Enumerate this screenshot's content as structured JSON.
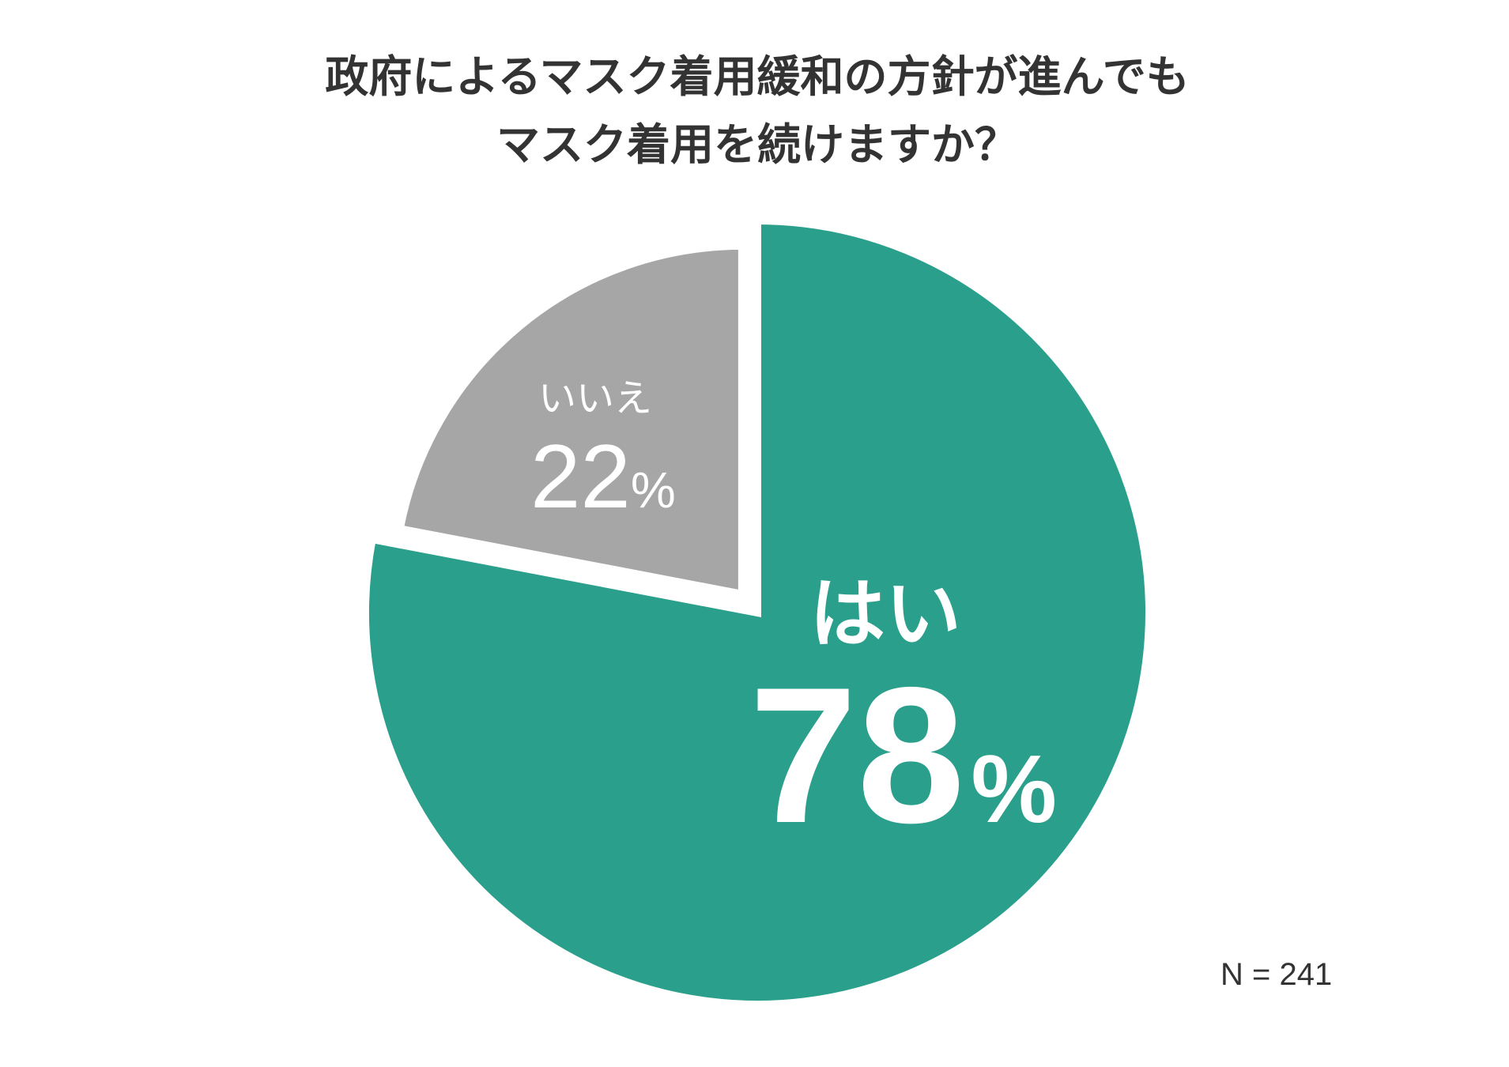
{
  "chart_data": {
    "type": "pie",
    "title": [
      "政府によるマスク着用緩和の方針が進んでも",
      "マスク着用を続けますか？"
    ],
    "unit": "%",
    "start": "top",
    "direction": "clockwise",
    "slices": [
      {
        "label": "はい",
        "value": 78,
        "color": "#2aa08c"
      },
      {
        "label": "いいえ",
        "value": 22,
        "color": "#a6a6a6",
        "exploded": true
      }
    ],
    "note": "N = 241"
  }
}
